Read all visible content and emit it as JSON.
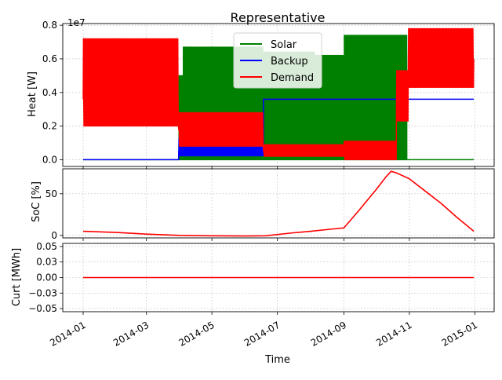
{
  "chart_data": [
    {
      "type": "line",
      "title": "Representative",
      "ylabel": "Heat [W]",
      "y_multiplier_label": "1e7",
      "ylim": [
        -0.4,
        8.1
      ],
      "ytick_values": [
        0.0,
        0.2,
        0.4,
        0.6,
        0.8
      ],
      "ytick_labels": [
        "0.0",
        "0.2",
        "0.4",
        "0.6",
        "0.8"
      ],
      "grid": true,
      "legend_position": "top-center",
      "series": [
        {
          "name": "Solar",
          "color": "#008000",
          "pattern": "daily-spikes",
          "profile": [
            {
              "start": "2014-01-01",
              "end": "2014-01-04",
              "base": 0.0,
              "peak": 0.0
            },
            {
              "start": "2014-01-04",
              "end": "2014-03-31",
              "base": 0.0,
              "peak": 0.0
            },
            {
              "start": "2014-03-31",
              "end": "2014-04-04",
              "base": 0.0,
              "peak": 5.0
            },
            {
              "start": "2014-04-04",
              "end": "2014-06-18",
              "base": 0.0,
              "peak": 6.7
            },
            {
              "start": "2014-06-18",
              "end": "2014-08-05",
              "base": 0.0,
              "peak": 6.4
            },
            {
              "start": "2014-08-05",
              "end": "2014-09-01",
              "base": 0.0,
              "peak": 6.2
            },
            {
              "start": "2014-09-01",
              "end": "2014-10-20",
              "base": 0.0,
              "peak": 7.4
            },
            {
              "start": "2014-10-20",
              "end": "2014-10-30",
              "base": 0.0,
              "peak": 7.4
            },
            {
              "start": "2014-10-30",
              "end": "2014-12-31",
              "base": 0.0,
              "peak": 0.0
            }
          ],
          "inner_band": {
            "start": "2014-04-10",
            "end": "2014-06-20",
            "low": 3.4,
            "high": 5.2
          }
        },
        {
          "name": "Backup",
          "color": "#0000ff",
          "pattern": "step",
          "points": [
            [
              "2014-01-01",
              0.0
            ],
            [
              "2014-03-31",
              0.0
            ],
            [
              "2014-03-31",
              0.5
            ],
            [
              "2014-06-18",
              0.5
            ],
            [
              "2014-06-18",
              3.6
            ],
            [
              "2014-07-01",
              3.6
            ],
            [
              "2014-09-01",
              3.6
            ],
            [
              "2014-09-01",
              3.6
            ],
            [
              "2014-12-31",
              3.6
            ]
          ],
          "oscillation": {
            "start": "2014-03-31",
            "end": "2014-06-18",
            "low": 0.2,
            "high": 1.3
          }
        },
        {
          "name": "Demand",
          "color": "#ff0000",
          "pattern": "daily-oscillation",
          "profile": [
            {
              "start": "2014-01-01",
              "end": "2014-03-31",
              "low": 2.0,
              "mid": 3.6,
              "high": 7.2
            },
            {
              "start": "2014-03-31",
              "end": "2014-06-18",
              "low": 0.8,
              "mid": 1.8,
              "high": 2.8
            },
            {
              "start": "2014-06-18",
              "end": "2014-09-01",
              "low": 0.2,
              "mid": 0.5,
              "high": 0.9
            },
            {
              "start": "2014-09-01",
              "end": "2014-10-20",
              "low": 0.0,
              "mid": 0.5,
              "high": 1.1
            },
            {
              "start": "2014-10-20",
              "end": "2014-10-31",
              "low": 2.3,
              "mid": 3.8,
              "high": 5.3
            },
            {
              "start": "2014-10-31",
              "end": "2014-12-31",
              "low": 4.3,
              "mid": 6.0,
              "high": 7.8
            }
          ]
        }
      ]
    },
    {
      "type": "line",
      "ylabel": "SoC [%]",
      "ylim": [
        -3,
        80
      ],
      "ytick_values": [
        0,
        50
      ],
      "ytick_labels": [
        "0",
        "50"
      ],
      "grid": true,
      "series": [
        {
          "color": "#ff0000",
          "x": [
            "2014-01-01",
            "2014-02-01",
            "2014-03-01",
            "2014-04-01",
            "2014-05-01",
            "2014-06-01",
            "2014-06-20",
            "2014-07-15",
            "2014-08-01",
            "2014-08-20",
            "2014-09-01",
            "2014-09-15",
            "2014-10-01",
            "2014-10-10",
            "2014-10-15",
            "2014-10-20",
            "2014-11-01",
            "2014-11-15",
            "2014-12-01",
            "2014-12-15",
            "2014-12-31"
          ],
          "y": [
            5,
            3.5,
            1.5,
            0,
            -0.5,
            -0.7,
            -0.5,
            3,
            5,
            7.5,
            9,
            30,
            55,
            70,
            77,
            75,
            68,
            54,
            38,
            22,
            5
          ]
        }
      ]
    },
    {
      "type": "line",
      "ylabel": "Curt [MWh]",
      "xlabel": "Time",
      "ylim": [
        -0.055,
        0.055
      ],
      "ytick_values": [
        -0.05,
        -0.025,
        0.0,
        0.025,
        0.05
      ],
      "ytick_labels": [
        "−0.05",
        "−0.03",
        "0.00",
        "0.03",
        "0.05"
      ],
      "grid": true,
      "xtick_labels": [
        "2014-01",
        "2014-03",
        "2014-05",
        "2014-07",
        "2014-09",
        "2014-11",
        "2015-01"
      ],
      "xtick_dates": [
        "2014-01-01",
        "2014-03-01",
        "2014-05-01",
        "2014-07-01",
        "2014-09-01",
        "2014-11-01",
        "2015-01-01"
      ],
      "xlim": [
        "2013-12-13",
        "2015-01-19"
      ],
      "series": [
        {
          "color": "#ff0000",
          "x": [
            "2014-01-01",
            "2014-12-31"
          ],
          "y": [
            0.0,
            0.0
          ]
        }
      ]
    }
  ]
}
